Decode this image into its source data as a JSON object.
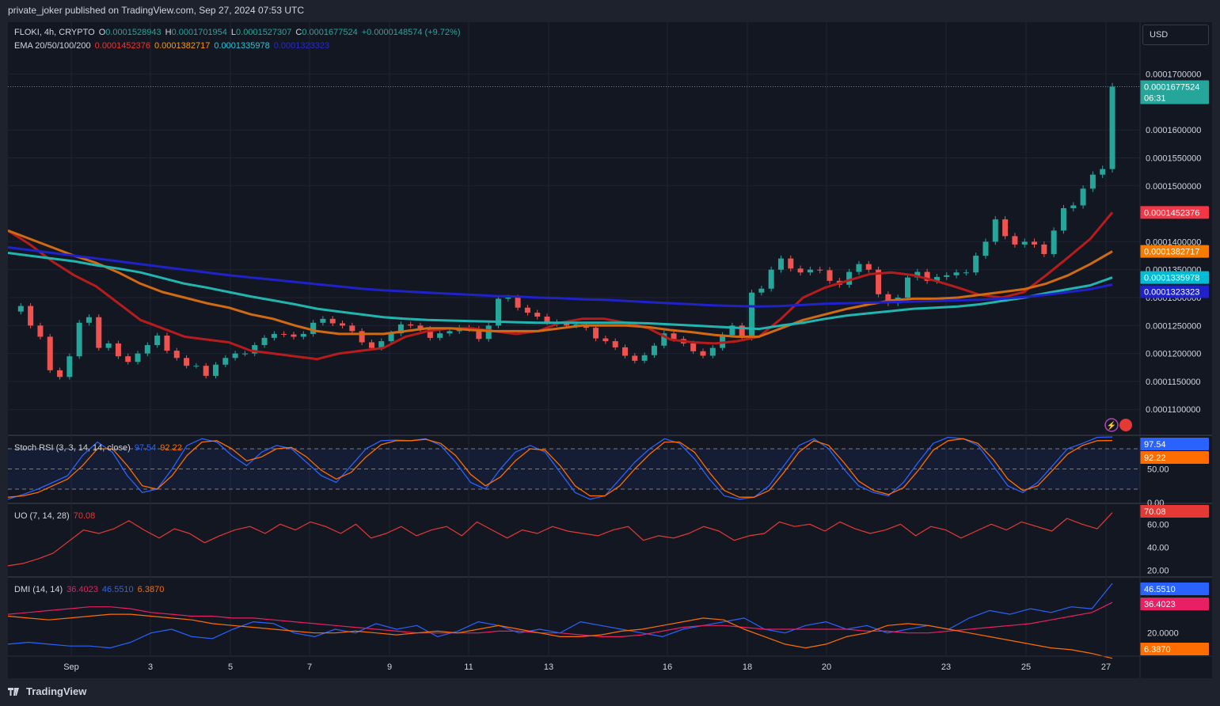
{
  "header": {
    "publisher": "private_joker published on TradingView.com, Sep 27, 2024 07:53 UTC"
  },
  "currency_button": "USD",
  "footer": {
    "brand": "TradingView"
  },
  "legend": {
    "symbol": "FLOKI, 4h, CRYPTO",
    "ohlc": {
      "o_label": "O",
      "o": "0.0001528943",
      "h_label": "H",
      "h": "0.0001701954",
      "l_label": "L",
      "l": "0.0001527307",
      "c_label": "C",
      "c": "0.0001677524",
      "change": "+0.0000148574 (+9.72%)"
    },
    "ema_label": "EMA 20/50/100/200",
    "ema_values": [
      "0.0001452376",
      "0.0001382717",
      "0.0001335978",
      "0.0001323323"
    ],
    "stoch_label": "Stoch RSI (3, 3, 14, 14, close)",
    "stoch_values": [
      "97.54",
      "92.22"
    ],
    "uo_label": "UO (7, 14, 28)",
    "uo_value": "70.08",
    "dmi_label": "DMI (14, 14)",
    "dmi_values": [
      "36.4023",
      "46.5510",
      "6.3870"
    ]
  },
  "colors": {
    "up": "#26a69a",
    "down": "#ef5350",
    "ema20": "#b71c1c",
    "ema50": "#d06a13",
    "ema100": "#22b5b0",
    "ema200": "#1f22c8",
    "stoch_k": "#2962ff",
    "stoch_d": "#ff6d00",
    "uo": "#e53935",
    "dmi_plus": "#2962ff",
    "dmi_minus": "#e91e63",
    "adx": "#ff6d00",
    "grid": "#1f2433",
    "text": "#d1d4dc"
  },
  "chart_data": [
    {
      "type": "candlestick",
      "title": "FLOKI, 4h, CRYPTO",
      "y_ticks": [
        "0.0001100000",
        "0.0001150000",
        "0.0001200000",
        "0.0001250000",
        "0.0001300000",
        "0.0001350000",
        "0.0001400000",
        "0.0001500000",
        "0.0001550000",
        "0.0001600000",
        "0.0001700000"
      ],
      "ylim": [
        0.0001055,
        0.0001715
      ],
      "x_ticks": [
        {
          "label": "Sep",
          "date": "Sep 1"
        },
        {
          "label": "3",
          "date": "Sep 3"
        },
        {
          "label": "5",
          "date": "Sep 5"
        },
        {
          "label": "7",
          "date": "Sep 7"
        },
        {
          "label": "9",
          "date": "Sep 9"
        },
        {
          "label": "11",
          "date": "Sep 11"
        },
        {
          "label": "13",
          "date": "Sep 13"
        },
        {
          "label": "16",
          "date": "Sep 16"
        },
        {
          "label": "18",
          "date": "Sep 18"
        },
        {
          "label": "20",
          "date": "Sep 20"
        },
        {
          "label": "23",
          "date": "Sep 23"
        },
        {
          "label": "25",
          "date": "Sep 25"
        },
        {
          "label": "27",
          "date": "Sep 27"
        }
      ],
      "price_path": [
        0.0001275,
        0.0001285,
        0.000125,
        0.000123,
        0.000117,
        0.0001158,
        0.0001195,
        0.0001255,
        0.0001265,
        0.000121,
        0.0001218,
        0.0001195,
        0.0001185,
        0.00012,
        0.0001215,
        0.0001232,
        0.0001205,
        0.0001192,
        0.0001178,
        0.0001178,
        0.000116,
        0.000118,
        0.0001192,
        0.00012,
        0.00012,
        0.0001215,
        0.0001228,
        0.0001235,
        0.0001234,
        0.000123,
        0.0001235,
        0.0001255,
        0.0001262,
        0.0001254,
        0.000125,
        0.000124,
        0.000122,
        0.000121,
        0.0001222,
        0.0001236,
        0.0001252,
        0.000125,
        0.0001244,
        0.0001228,
        0.0001236,
        0.000124,
        0.0001246,
        0.0001244,
        0.0001226,
        0.000125,
        0.0001298,
        0.00013,
        0.0001282,
        0.0001273,
        0.0001266,
        0.0001256,
        0.0001253,
        0.000125,
        0.0001252,
        0.0001246,
        0.0001227,
        0.0001222,
        0.0001211,
        0.0001196,
        0.0001187,
        0.0001197,
        0.0001214,
        0.0001236,
        0.0001226,
        0.0001218,
        0.0001204,
        0.0001196,
        0.000121,
        0.0001233,
        0.000125,
        0.0001228,
        0.0001309,
        0.0001316,
        0.000135,
        0.000137,
        0.0001352,
        0.0001345,
        0.000135,
        0.0001349,
        0.000133,
        0.0001323,
        0.0001346,
        0.000136,
        0.000135,
        0.0001306,
        0.000129,
        0.00013,
        0.0001336,
        0.0001346,
        0.000133,
        0.0001337,
        0.000134,
        0.0001345,
        0.0001345,
        0.0001375,
        0.00014,
        0.000144,
        0.000141,
        0.0001395,
        0.00014,
        0.0001395,
        0.0001378,
        0.000142,
        0.000146,
        0.0001465,
        0.0001495,
        0.000152,
        0.000153,
        0.0001677524
      ],
      "last_price": "0.0001677524",
      "countdown": "06:31",
      "series": [
        {
          "name": "EMA 20",
          "last": "0.0001452376",
          "values": [
            0.000142,
            0.0001395,
            0.0001365,
            0.000134,
            0.000132,
            0.000129,
            0.000126,
            0.0001245,
            0.000123,
            0.0001225,
            0.000122,
            0.0001205,
            0.00012,
            0.0001195,
            0.000119,
            0.00012,
            0.0001205,
            0.000121,
            0.000123,
            0.000124,
            0.0001245,
            0.0001245,
            0.000124,
            0.0001235,
            0.000124,
            0.0001255,
            0.0001262,
            0.0001262,
            0.0001255,
            0.0001245,
            0.0001225,
            0.000122,
            0.0001218,
            0.0001222,
            0.000123,
            0.0001262,
            0.00013,
            0.0001318,
            0.000133,
            0.0001342,
            0.0001345,
            0.000134,
            0.000133,
            0.0001318,
            0.0001305,
            0.00013,
            0.000131,
            0.000134,
            0.0001372,
            0.0001405,
            0.0001452376
          ]
        },
        {
          "name": "EMA 50",
          "last": "0.0001382717",
          "values": [
            0.000142,
            0.0001405,
            0.000139,
            0.0001375,
            0.0001362,
            0.0001345,
            0.0001325,
            0.000131,
            0.00013,
            0.000129,
            0.0001282,
            0.000127,
            0.0001262,
            0.000125,
            0.000124,
            0.0001235,
            0.0001235,
            0.0001235,
            0.000124,
            0.0001245,
            0.0001245,
            0.0001242,
            0.000124,
            0.000124,
            0.000124,
            0.0001245,
            0.000125,
            0.000125,
            0.000125,
            0.0001247,
            0.0001242,
            0.0001238,
            0.0001233,
            0.000123,
            0.000123,
            0.0001245,
            0.000126,
            0.000127,
            0.000128,
            0.0001288,
            0.0001295,
            0.0001298,
            0.0001298,
            0.00013,
            0.0001305,
            0.000131,
            0.0001315,
            0.0001325,
            0.000134,
            0.000136,
            0.0001382717
          ]
        },
        {
          "name": "EMA 100",
          "last": "0.0001335978",
          "values": [
            0.000138,
            0.0001375,
            0.000137,
            0.0001365,
            0.0001358,
            0.0001352,
            0.0001345,
            0.0001335,
            0.0001325,
            0.0001318,
            0.000131,
            0.0001302,
            0.0001295,
            0.0001288,
            0.000128,
            0.0001275,
            0.000127,
            0.0001265,
            0.0001262,
            0.000126,
            0.0001259,
            0.0001258,
            0.0001257,
            0.0001256,
            0.0001255,
            0.0001255,
            0.0001255,
            0.0001255,
            0.0001255,
            0.0001254,
            0.0001252,
            0.000125,
            0.0001248,
            0.0001246,
            0.0001244,
            0.000125,
            0.0001255,
            0.0001262,
            0.0001268,
            0.0001272,
            0.0001276,
            0.000128,
            0.0001282,
            0.0001284,
            0.0001288,
            0.0001294,
            0.00013,
            0.0001308,
            0.0001315,
            0.0001322,
            0.0001335978
          ]
        },
        {
          "name": "EMA 200",
          "last": "0.0001323323",
          "values": [
            0.000139,
            0.0001385,
            0.000138,
            0.0001375,
            0.000137,
            0.0001365,
            0.000136,
            0.0001355,
            0.000135,
            0.0001345,
            0.000134,
            0.0001336,
            0.0001332,
            0.0001328,
            0.0001324,
            0.000132,
            0.0001316,
            0.0001313,
            0.0001311,
            0.0001309,
            0.0001307,
            0.0001305,
            0.0001303,
            0.0001302,
            0.00013,
            0.0001299,
            0.0001297,
            0.0001296,
            0.0001294,
            0.0001292,
            0.000129,
            0.0001288,
            0.0001286,
            0.0001285,
            0.0001284,
            0.0001285,
            0.0001287,
            0.0001289,
            0.000129,
            0.0001291,
            0.0001292,
            0.0001293,
            0.0001294,
            0.0001295,
            0.0001296,
            0.0001298,
            0.0001301,
            0.0001305,
            0.000131,
            0.0001315,
            0.0001323323
          ]
        }
      ]
    },
    {
      "type": "line",
      "title": "Stoch RSI (3, 3, 14, 14, close)",
      "y_ticks": [
        "0.00",
        "50.00"
      ],
      "ylim": [
        0,
        100
      ],
      "bands": [
        20,
        50,
        80
      ],
      "series": [
        {
          "name": "K",
          "last": "97.54",
          "values": [
            5,
            12,
            20,
            30,
            40,
            70,
            90,
            75,
            40,
            15,
            20,
            50,
            85,
            95,
            90,
            70,
            55,
            75,
            85,
            80,
            60,
            40,
            30,
            55,
            80,
            92,
            93,
            92,
            95,
            85,
            60,
            30,
            20,
            50,
            75,
            85,
            75,
            45,
            15,
            5,
            10,
            35,
            60,
            80,
            95,
            88,
            65,
            35,
            10,
            5,
            8,
            25,
            55,
            85,
            95,
            80,
            50,
            25,
            15,
            10,
            30,
            60,
            88,
            97,
            95,
            85,
            55,
            25,
            15,
            30,
            55,
            80,
            88,
            97,
            97.54
          ]
        },
        {
          "name": "D",
          "last": "92.22",
          "values": [
            8,
            10,
            15,
            25,
            35,
            55,
            80,
            80,
            55,
            25,
            20,
            40,
            70,
            90,
            92,
            80,
            62,
            68,
            80,
            82,
            68,
            48,
            35,
            45,
            68,
            86,
            92,
            92,
            94,
            88,
            70,
            42,
            25,
            38,
            62,
            80,
            78,
            55,
            25,
            10,
            10,
            25,
            50,
            72,
            90,
            90,
            75,
            45,
            18,
            8,
            8,
            18,
            45,
            75,
            92,
            85,
            60,
            32,
            18,
            12,
            22,
            48,
            78,
            92,
            95,
            88,
            65,
            35,
            18,
            25,
            48,
            72,
            85,
            92,
            92.22
          ]
        }
      ]
    },
    {
      "type": "line",
      "title": "UO (7, 14, 28)",
      "y_ticks": [
        "20.00",
        "40.00",
        "60.00"
      ],
      "ylim": [
        15,
        78
      ],
      "series": [
        {
          "name": "UO",
          "last": "70.08",
          "values": [
            24,
            26,
            30,
            35,
            45,
            55,
            52,
            56,
            63,
            55,
            48,
            56,
            52,
            44,
            50,
            55,
            58,
            52,
            60,
            55,
            62,
            58,
            52,
            60,
            48,
            52,
            58,
            50,
            55,
            58,
            50,
            62,
            55,
            48,
            55,
            52,
            58,
            54,
            52,
            50,
            55,
            58,
            46,
            50,
            48,
            52,
            58,
            54,
            46,
            50,
            52,
            62,
            58,
            60,
            54,
            62,
            56,
            52,
            55,
            60,
            50,
            58,
            55,
            48,
            54,
            60,
            55,
            62,
            58,
            54,
            65,
            60,
            56,
            70.08
          ]
        }
      ]
    },
    {
      "type": "line",
      "title": "DMI (14, 14)",
      "y_ticks": [
        "20.0000"
      ],
      "ylim": [
        8,
        50
      ],
      "series": [
        {
          "name": "+DI",
          "last": "46.5510",
          "values": [
            14,
            15,
            14,
            13,
            13,
            12,
            15,
            20,
            22,
            18,
            17,
            22,
            26,
            25,
            20,
            18,
            22,
            20,
            25,
            22,
            24,
            18,
            21,
            26,
            24,
            20,
            22,
            20,
            26,
            24,
            22,
            20,
            18,
            22,
            24,
            26,
            28,
            22,
            20,
            24,
            26,
            22,
            24,
            20,
            22,
            24,
            22,
            28,
            32,
            30,
            33,
            31,
            34,
            33,
            46.551
          ]
        },
        {
          "name": "-DI",
          "last": "36.4023",
          "values": [
            30,
            31,
            32,
            33,
            34,
            34,
            33,
            31,
            30,
            29,
            29,
            28,
            28,
            27,
            26,
            25,
            24,
            23,
            22,
            21,
            20,
            20,
            20,
            20,
            21,
            21,
            20,
            20,
            19,
            18,
            18,
            19,
            21,
            23,
            24,
            24,
            23,
            22,
            22,
            22,
            22,
            22,
            21,
            21,
            20,
            20,
            21,
            22,
            23,
            24,
            25,
            27,
            29,
            31,
            36.4023
          ]
        },
        {
          "name": "ADX",
          "last": "6.3870",
          "values": [
            29,
            28,
            27,
            28,
            29,
            30,
            30,
            29,
            28,
            27,
            25,
            24,
            23,
            22,
            21,
            20,
            20,
            21,
            20,
            19,
            20,
            21,
            20,
            22,
            24,
            22,
            20,
            18,
            18,
            19,
            21,
            22,
            24,
            26,
            28,
            27,
            22,
            18,
            14,
            12,
            14,
            18,
            20,
            24,
            25,
            24,
            22,
            20,
            18,
            16,
            14,
            12,
            11,
            9,
            6.387
          ]
        }
      ]
    }
  ]
}
